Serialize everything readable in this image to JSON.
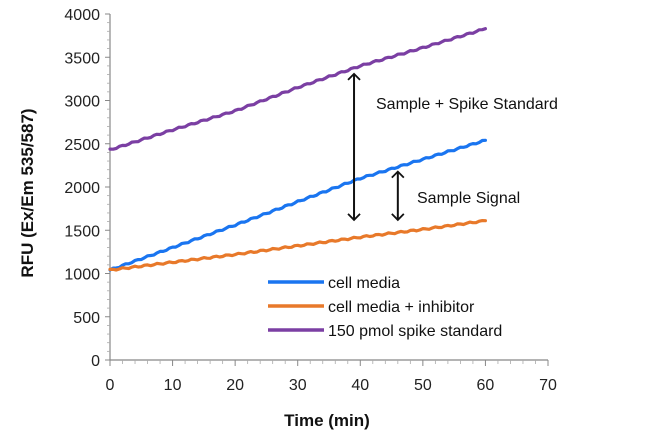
{
  "chart_data": {
    "type": "line",
    "title": "",
    "xlabel": "Time (min)",
    "ylabel": "RFU (Ex/Em 535/587)",
    "xlim": [
      0,
      70
    ],
    "ylim": [
      0,
      4000
    ],
    "xticks": [
      0,
      10,
      20,
      30,
      40,
      50,
      60,
      70
    ],
    "yticks": [
      0,
      500,
      1000,
      1500,
      2000,
      2500,
      3000,
      3500,
      4000
    ],
    "grid": false,
    "legend_position": "bottom-right",
    "series": [
      {
        "name": "cell media",
        "color": "#1a75f0",
        "x": [
          0,
          10,
          20,
          30,
          40,
          50,
          60
        ],
        "y": [
          1040,
          1300,
          1560,
          1830,
          2100,
          2320,
          2540
        ]
      },
      {
        "name": "cell media + inhibitor",
        "color": "#e8792a",
        "x": [
          0,
          10,
          20,
          30,
          40,
          50,
          60
        ],
        "y": [
          1040,
          1130,
          1220,
          1320,
          1420,
          1510,
          1610
        ]
      },
      {
        "name": "150 pmol spike standard",
        "color": "#7b3fa3",
        "x": [
          0,
          10,
          20,
          30,
          40,
          50,
          60
        ],
        "y": [
          2430,
          2660,
          2880,
          3150,
          3400,
          3610,
          3830
        ]
      }
    ],
    "annotations": [
      {
        "text": "Sample + Spike Standard",
        "x_from": 39,
        "y_from": 3400,
        "y_to": 1550
      },
      {
        "text": "Sample Signal",
        "x_from": 46,
        "y_from": 2270,
        "y_to": 1550
      }
    ]
  }
}
